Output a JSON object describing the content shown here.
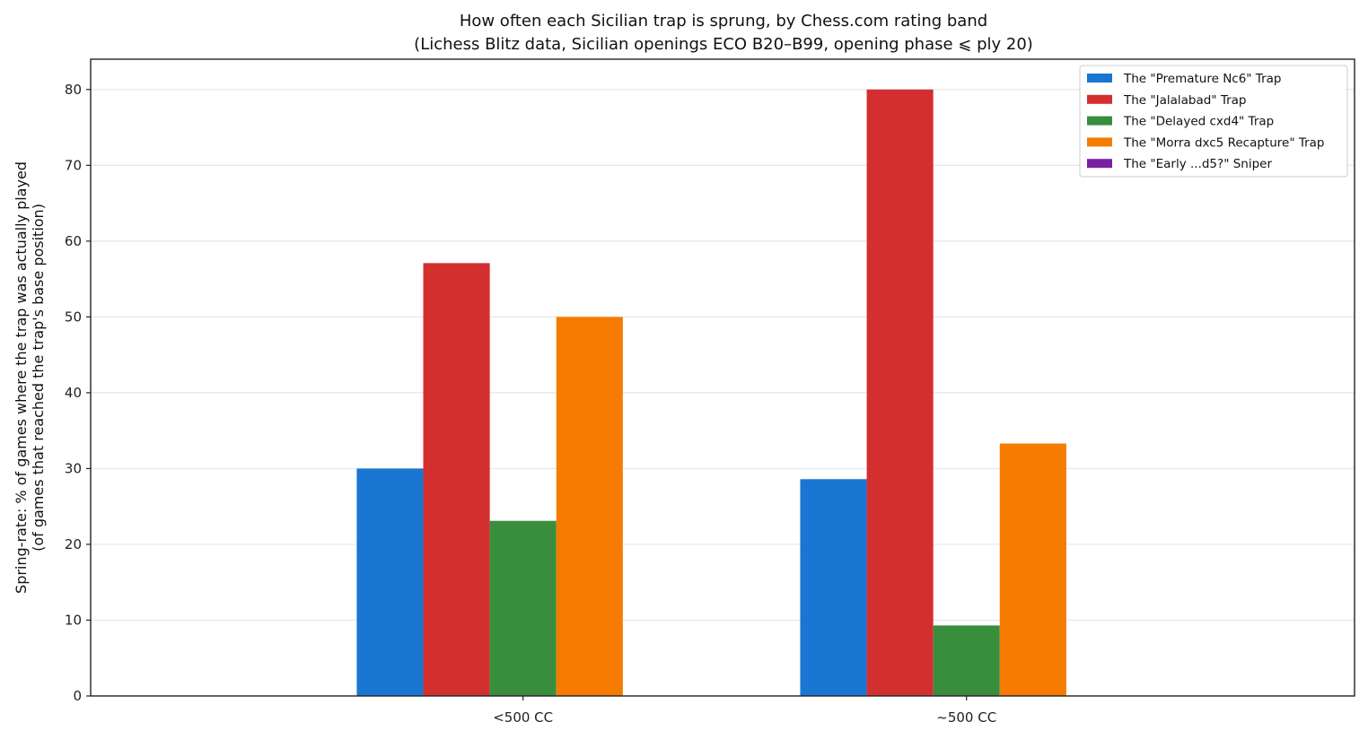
{
  "chart_data": {
    "type": "bar",
    "title": "How often each Sicilian trap is sprung, by Chess.com rating band",
    "subtitle": "(Lichess Blitz data, Sicilian openings ECO B20–B99, opening phase ⩽ ply 20)",
    "ylabel": "Spring-rate: % of games where the trap was actually played",
    "ylabel2": "(of games that reached the trap's base position)",
    "xlabel": "",
    "categories": [
      "<500 CC",
      "~500 CC"
    ],
    "ylim": [
      0,
      84
    ],
    "yticks": [
      0,
      10,
      20,
      30,
      40,
      50,
      60,
      70,
      80
    ],
    "grid": "y",
    "legend_position": "top-right",
    "series": [
      {
        "name": "The \"Premature Nc6\" Trap",
        "color": "#1976d2",
        "values": [
          30.0,
          28.6
        ]
      },
      {
        "name": "The \"Jalalabad\" Trap",
        "color": "#d32f2f",
        "values": [
          57.1,
          80.0
        ]
      },
      {
        "name": "The \"Delayed cxd4\" Trap",
        "color": "#388e3c",
        "values": [
          23.1,
          9.3
        ]
      },
      {
        "name": "The \"Morra dxc5 Recapture\" Trap",
        "color": "#f57c00",
        "values": [
          50.0,
          33.3
        ]
      },
      {
        "name": "The \"Early ...d5?\" Sniper",
        "color": "#7b1fa2",
        "values": [
          0,
          0
        ]
      }
    ]
  }
}
